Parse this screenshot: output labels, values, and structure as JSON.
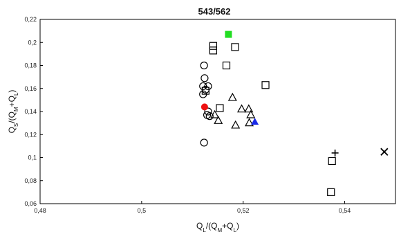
{
  "chart_data": {
    "type": "scatter",
    "title": "543/562",
    "xlabel": {
      "parts": [
        [
          "Q",
          ""
        ],
        [
          "L",
          "sub"
        ],
        [
          "/(Q",
          ""
        ],
        [
          "M",
          "sub"
        ],
        [
          "+Q",
          ""
        ],
        [
          "L",
          "sub"
        ],
        [
          ")",
          ""
        ]
      ]
    },
    "ylabel": {
      "parts": [
        [
          "Q",
          ""
        ],
        [
          "S",
          "sub"
        ],
        [
          "/(Q",
          ""
        ],
        [
          "M",
          "sub"
        ],
        [
          "+Q",
          ""
        ],
        [
          "L",
          "sub"
        ],
        [
          ")",
          ""
        ]
      ]
    },
    "xlim": [
      0.48,
      0.55
    ],
    "ylim": [
      0.06,
      0.22
    ],
    "xticks": [
      0.48,
      0.5,
      0.52,
      0.54
    ],
    "xtick_labels": [
      "0,48",
      "0,5",
      "0,52",
      "0,54"
    ],
    "yticks": [
      0.06,
      0.08,
      0.1,
      0.12,
      0.14,
      0.16,
      0.18,
      0.2,
      0.22
    ],
    "ytick_labels": [
      "0,06",
      "0,08",
      "0,1",
      "0,12",
      "0,14",
      "0,16",
      "0,18",
      "0,2",
      "0,22"
    ],
    "grid": false,
    "legend": "none",
    "series": [
      {
        "marker": "circle-open",
        "color": "#000000",
        "points": [
          [
            0.5123,
            0.18
          ],
          [
            0.5124,
            0.169
          ],
          [
            0.5131,
            0.162
          ],
          [
            0.5121,
            0.162
          ],
          [
            0.5126,
            0.159
          ],
          [
            0.5121,
            0.155
          ],
          [
            0.5131,
            0.14
          ],
          [
            0.5129,
            0.137
          ],
          [
            0.5134,
            0.136
          ],
          [
            0.5123,
            0.113
          ]
        ]
      },
      {
        "marker": "square-open",
        "color": "#000000",
        "points": [
          [
            0.5141,
            0.197
          ],
          [
            0.5141,
            0.193
          ],
          [
            0.5184,
            0.196
          ],
          [
            0.5167,
            0.18
          ],
          [
            0.5126,
            0.158
          ],
          [
            0.5244,
            0.163
          ],
          [
            0.5154,
            0.143
          ],
          [
            0.5375,
            0.097
          ],
          [
            0.5373,
            0.07
          ]
        ]
      },
      {
        "marker": "triangle-open",
        "color": "#000000",
        "points": [
          [
            0.5179,
            0.152
          ],
          [
            0.5197,
            0.142
          ],
          [
            0.5211,
            0.142
          ],
          [
            0.5215,
            0.137
          ],
          [
            0.5144,
            0.137
          ],
          [
            0.5151,
            0.132
          ],
          [
            0.5185,
            0.128
          ],
          [
            0.5212,
            0.13
          ]
        ]
      },
      {
        "marker": "square-filled",
        "color": "#22dd22",
        "points": [
          [
            0.5171,
            0.207
          ]
        ]
      },
      {
        "marker": "circle-filled",
        "color": "#ee1111",
        "points": [
          [
            0.5124,
            0.144
          ]
        ]
      },
      {
        "marker": "triangle-filled",
        "color": "#1a2ae8",
        "points": [
          [
            0.5223,
            0.131
          ]
        ]
      },
      {
        "marker": "plus",
        "color": "#000000",
        "points": [
          [
            0.5381,
            0.104
          ]
        ]
      },
      {
        "marker": "x",
        "color": "#000000",
        "points": [
          [
            0.5478,
            0.105
          ]
        ]
      }
    ]
  }
}
